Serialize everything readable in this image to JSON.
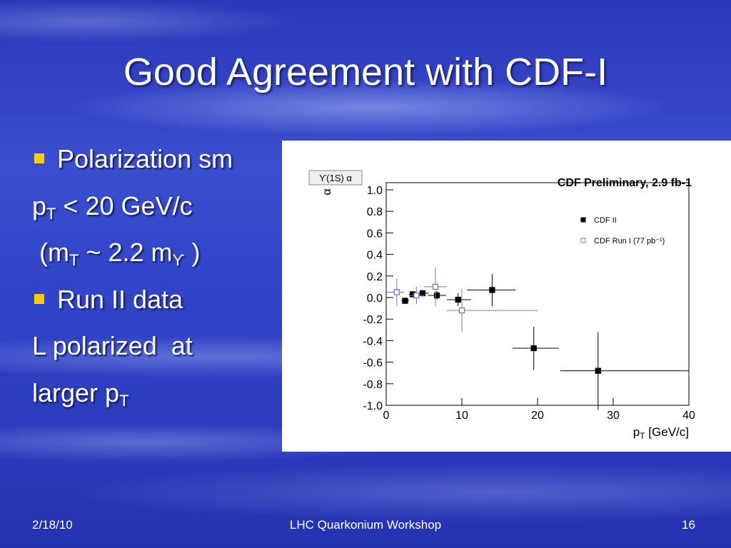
{
  "slide": {
    "title": "Good Agreement with CDF-I",
    "lines": [
      {
        "bullet": true,
        "runs": [
          {
            "t": "Polarization sm"
          }
        ]
      },
      {
        "bullet": false,
        "runs": [
          {
            "t": "p"
          },
          {
            "t": "T",
            "sub": true
          },
          {
            "t": " < 20 GeV/c"
          }
        ]
      },
      {
        "bullet": false,
        "runs": [
          {
            "t": " (m"
          },
          {
            "t": "T",
            "sub": true
          },
          {
            "t": " ~ 2.2 m"
          },
          {
            "t": "ϒ",
            "sub": true
          },
          {
            "t": " )"
          }
        ]
      },
      {
        "bullet": true,
        "runs": [
          {
            "t": "Run II data"
          }
        ]
      },
      {
        "bullet": false,
        "runs": [
          {
            "t": "L polarized  at"
          }
        ]
      },
      {
        "bullet": false,
        "runs": [
          {
            "t": "larger p"
          },
          {
            "t": "T",
            "sub": true
          }
        ]
      }
    ],
    "footer": {
      "date": "2/18/10",
      "center": "LHC Quarkonium Workshop",
      "page": "16"
    }
  },
  "chart_data": {
    "type": "scatter",
    "title": "CDF Preliminary, 2.9 fb-1",
    "y_box_label": "ϒ(1S) α",
    "ylabel": "α",
    "xlabel": {
      "main": "p",
      "sub": "T",
      "rest": " [GeV/c]"
    },
    "xlim": [
      0,
      40
    ],
    "xticks": [
      0,
      10,
      20,
      30,
      40
    ],
    "ylim": [
      -1,
      1
    ],
    "yticks": [
      {
        "value": 1,
        "label": "1.0"
      },
      0.8,
      0.6,
      0.4,
      0.2,
      {
        "value": 0,
        "label": "0.0"
      },
      -0.2,
      -0.4,
      -0.6,
      -0.8,
      {
        "value": -1,
        "label": "-1.0"
      }
    ],
    "series": [
      {
        "name": "CDF II",
        "color": "#000000",
        "marker": "filled",
        "x": [
          2.5,
          3.5,
          4.8,
          6.7,
          9.5,
          14,
          19.5,
          28
        ],
        "values": [
          -0.03,
          0.03,
          0.04,
          0.02,
          -0.02,
          0.07,
          -0.47,
          -0.68
        ],
        "yerr": [
          0.03,
          0.03,
          0.03,
          0.04,
          0.06,
          0.15,
          0.2,
          0.36
        ],
        "xerr_low": [
          0.5,
          0.5,
          0.8,
          1.2,
          1.5,
          3.3,
          2.8,
          5
        ],
        "xerr_high": [
          0.5,
          0.5,
          0.8,
          1.2,
          1.7,
          3.1,
          3.3,
          12
        ]
      },
      {
        "name": "CDF Run I (77 pb⁻¹)",
        "color": "#7777bb",
        "marker": "open",
        "x": [
          1.4,
          4,
          6.5,
          10
        ],
        "values": [
          0.05,
          0.02,
          0.1,
          -0.12
        ],
        "yerr": [
          0.13,
          0.08,
          0.18,
          0.2
        ],
        "xerr_low": [
          1.4,
          1,
          1.5,
          2
        ],
        "xerr_high": [
          1,
          1,
          1.5,
          10
        ]
      }
    ]
  }
}
